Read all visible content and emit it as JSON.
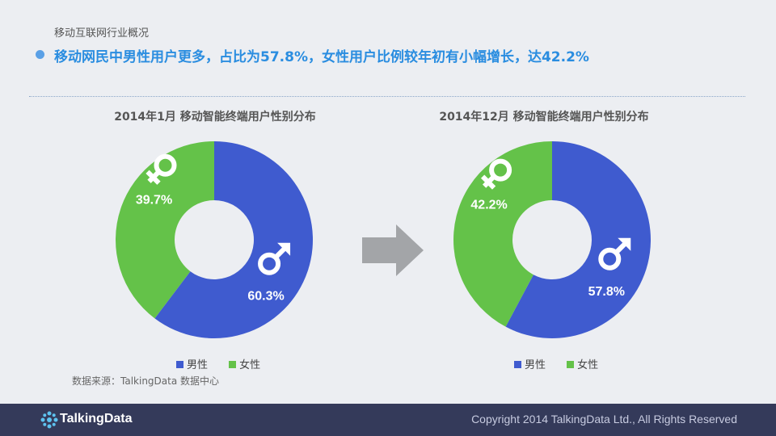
{
  "page": {
    "section_label": "移动互联网行业概况",
    "headline": "移动网民中男性用户更多，占比为57.8%，女性用户比例较年初有小幅增长，达42.2%",
    "source": "数据来源：TalkingData 数据中心",
    "footer_logo": "TalkingData",
    "copyright": "Copyright 2014 TalkingData Ltd., All Rights Reserved"
  },
  "colors": {
    "male": "#3f5bcf",
    "female": "#64c249",
    "accent": "#2a8de0",
    "footer": "#343a5a"
  },
  "chart_data": [
    {
      "type": "pie",
      "title": "2014年1月 移动智能终端用户性别分布",
      "categories": [
        "男性",
        "女性"
      ],
      "values": [
        60.3,
        39.7
      ],
      "labels": [
        "60.3%",
        "39.7%"
      ],
      "icons": [
        "male-icon",
        "female-icon"
      ],
      "legend": "bottom"
    },
    {
      "type": "pie",
      "title": "2014年12月 移动智能终端用户性别分布",
      "categories": [
        "男性",
        "女性"
      ],
      "values": [
        57.8,
        42.2
      ],
      "labels": [
        "57.8%",
        "42.2%"
      ],
      "icons": [
        "male-icon",
        "female-icon"
      ],
      "legend": "bottom"
    }
  ]
}
